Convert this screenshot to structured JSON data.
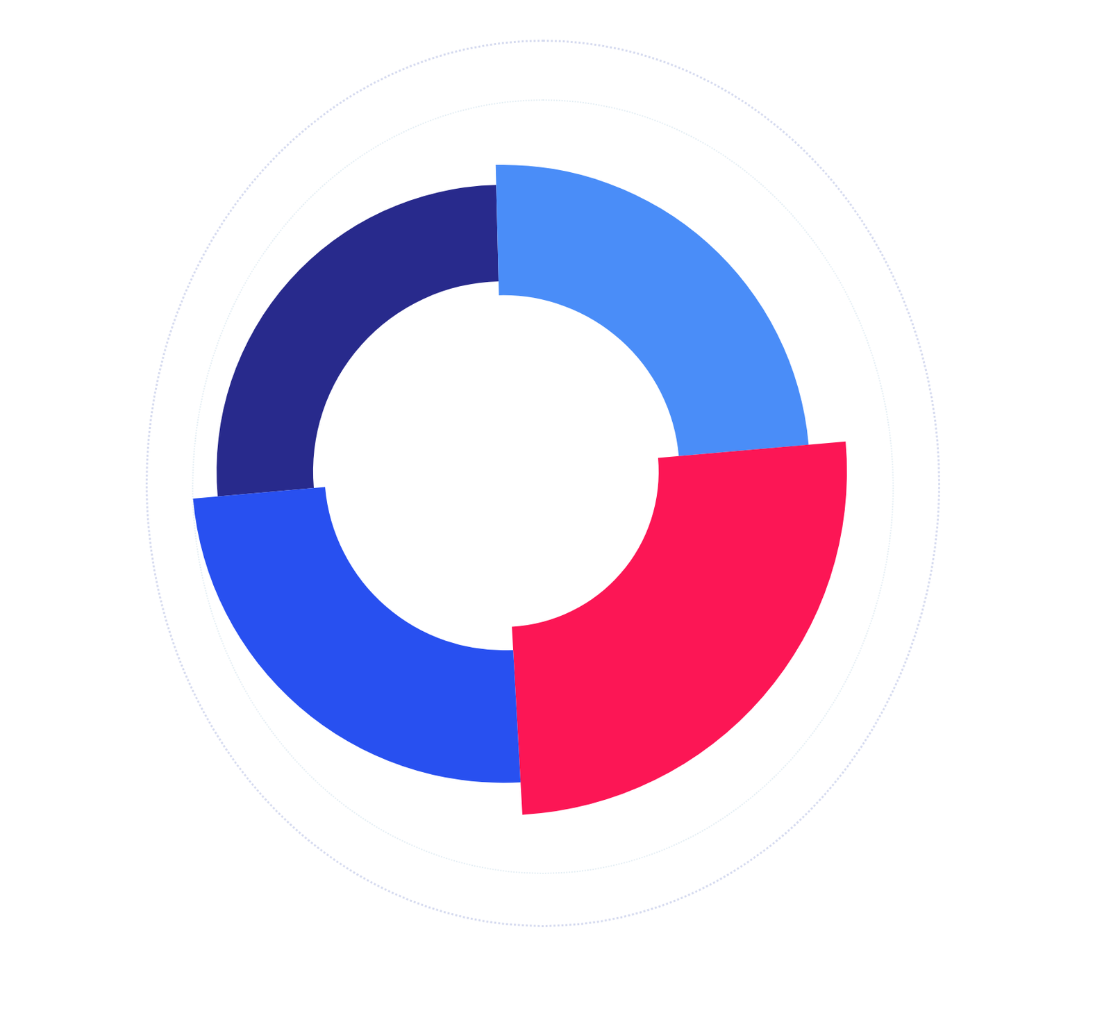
{
  "chart_data": {
    "type": "doughnut",
    "values": [
      26,
      24,
      25.5,
      24.5
    ],
    "colors": [
      "#282a8c",
      "#4a8df8",
      "#fc1655",
      "#2850f0"
    ]
  }
}
